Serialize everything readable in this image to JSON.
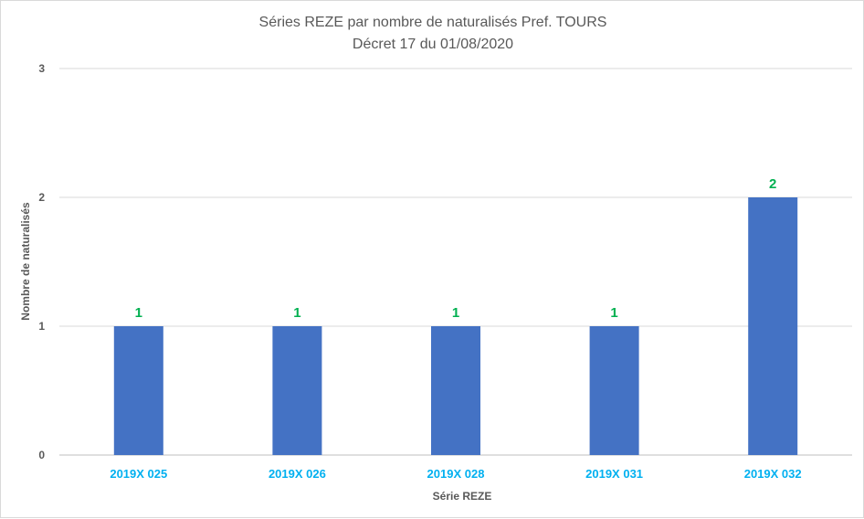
{
  "chart_data": {
    "type": "bar",
    "title": "Séries REZE par nombre de naturalisés Pref. TOURS",
    "subtitle": "Décret 17 du 01/08/2020",
    "xlabel": "Série REZE",
    "ylabel": "Nombre de naturalisés",
    "categories": [
      "2019X 025",
      "2019X 026",
      "2019X 028",
      "2019X 031",
      "2019X 032"
    ],
    "values": [
      1,
      1,
      1,
      1,
      2
    ],
    "data_labels": [
      "1",
      "1",
      "1",
      "1",
      "2"
    ],
    "ylim": [
      0,
      3
    ],
    "yticks": [
      "0",
      "1",
      "2",
      "3"
    ],
    "grid": true,
    "colors": {
      "bar": "#4472c4",
      "data_label": "#00b050",
      "category_label": "#00b0f0",
      "gridline": "#d9d9d9",
      "axis": "#bfbfbf"
    }
  }
}
